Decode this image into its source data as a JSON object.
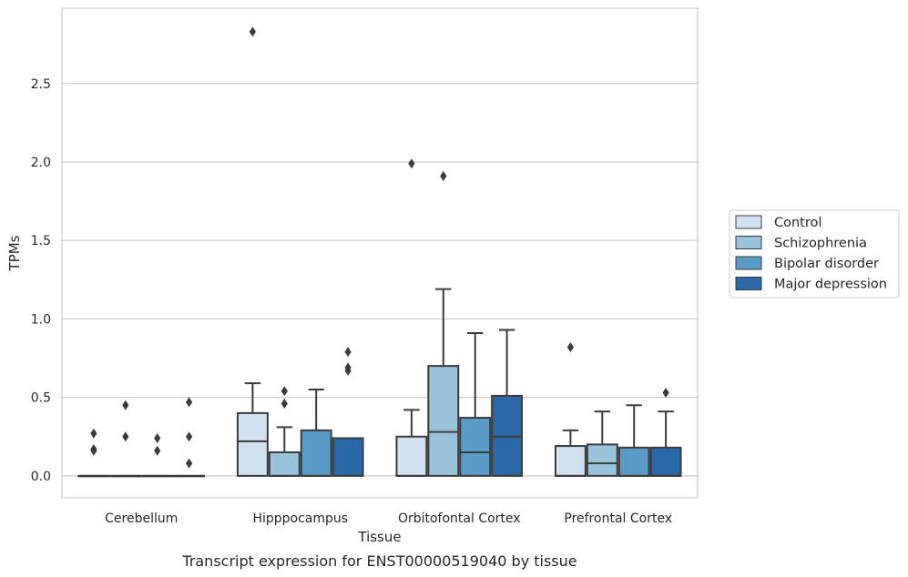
{
  "caption": "Transcript expression for ENST00000519040 by tissue",
  "chart_data": {
    "type": "box",
    "xlabel": "Tissue",
    "ylabel": "TPMs",
    "ylim": [
      -0.14,
      2.98
    ],
    "yticks": [
      0.0,
      0.5,
      1.0,
      1.5,
      2.0,
      2.5
    ],
    "ytick_labels": [
      "0.0",
      "0.5",
      "1.0",
      "1.5",
      "2.0",
      "2.5"
    ],
    "grid": "horizontal",
    "legend_position": "right",
    "categories": [
      "Cerebellum",
      "Hipppocampus",
      "Orbitofontal Cortex",
      "Prefrontal Cortex"
    ],
    "series": [
      {
        "name": "Control",
        "color": "#d1e1f1",
        "boxes": [
          {
            "q1": 0.0,
            "median": 0.0,
            "q3": 0.0,
            "whislo": 0.0,
            "whishi": 0.0,
            "fliers": [
              0.27,
              0.17,
              0.16
            ]
          },
          {
            "q1": 0.0,
            "median": 0.22,
            "q3": 0.4,
            "whislo": 0.0,
            "whishi": 0.59,
            "fliers": [
              2.83
            ]
          },
          {
            "q1": 0.0,
            "median": 0.0,
            "q3": 0.25,
            "whislo": 0.0,
            "whishi": 0.42,
            "fliers": [
              1.99
            ]
          },
          {
            "q1": 0.0,
            "median": 0.0,
            "q3": 0.19,
            "whislo": 0.0,
            "whishi": 0.29,
            "fliers": [
              0.82
            ]
          }
        ]
      },
      {
        "name": "Schizophrenia",
        "color": "#9ac3dc",
        "boxes": [
          {
            "q1": 0.0,
            "median": 0.0,
            "q3": 0.0,
            "whislo": 0.0,
            "whishi": 0.0,
            "fliers": [
              0.45,
              0.25
            ]
          },
          {
            "q1": 0.0,
            "median": 0.0,
            "q3": 0.15,
            "whislo": 0.0,
            "whishi": 0.31,
            "fliers": [
              0.54,
              0.46
            ]
          },
          {
            "q1": 0.0,
            "median": 0.28,
            "q3": 0.7,
            "whislo": 0.0,
            "whishi": 1.19,
            "fliers": [
              1.91
            ]
          },
          {
            "q1": 0.0,
            "median": 0.08,
            "q3": 0.2,
            "whislo": 0.0,
            "whishi": 0.41,
            "fliers": []
          }
        ]
      },
      {
        "name": "Bipolar disorder",
        "color": "#5a9bc8",
        "boxes": [
          {
            "q1": 0.0,
            "median": 0.0,
            "q3": 0.0,
            "whislo": 0.0,
            "whishi": 0.0,
            "fliers": [
              0.24,
              0.16
            ]
          },
          {
            "q1": 0.0,
            "median": 0.0,
            "q3": 0.29,
            "whislo": 0.0,
            "whishi": 0.55,
            "fliers": []
          },
          {
            "q1": 0.0,
            "median": 0.15,
            "q3": 0.37,
            "whislo": 0.0,
            "whishi": 0.91,
            "fliers": []
          },
          {
            "q1": 0.0,
            "median": 0.0,
            "q3": 0.18,
            "whislo": 0.0,
            "whishi": 0.45,
            "fliers": []
          }
        ]
      },
      {
        "name": "Major depression",
        "color": "#2a68a8",
        "boxes": [
          {
            "q1": 0.0,
            "median": 0.0,
            "q3": 0.0,
            "whislo": 0.0,
            "whishi": 0.0,
            "fliers": [
              0.47,
              0.25,
              0.08
            ]
          },
          {
            "q1": 0.0,
            "median": 0.24,
            "q3": 0.24,
            "whislo": 0.0,
            "whishi": 0.24,
            "fliers": [
              0.79,
              0.69,
              0.67
            ]
          },
          {
            "q1": 0.0,
            "median": 0.25,
            "q3": 0.51,
            "whislo": 0.0,
            "whishi": 0.93,
            "fliers": []
          },
          {
            "q1": 0.0,
            "median": 0.0,
            "q3": 0.18,
            "whislo": 0.0,
            "whishi": 0.41,
            "fliers": [
              0.53
            ]
          }
        ]
      }
    ]
  }
}
